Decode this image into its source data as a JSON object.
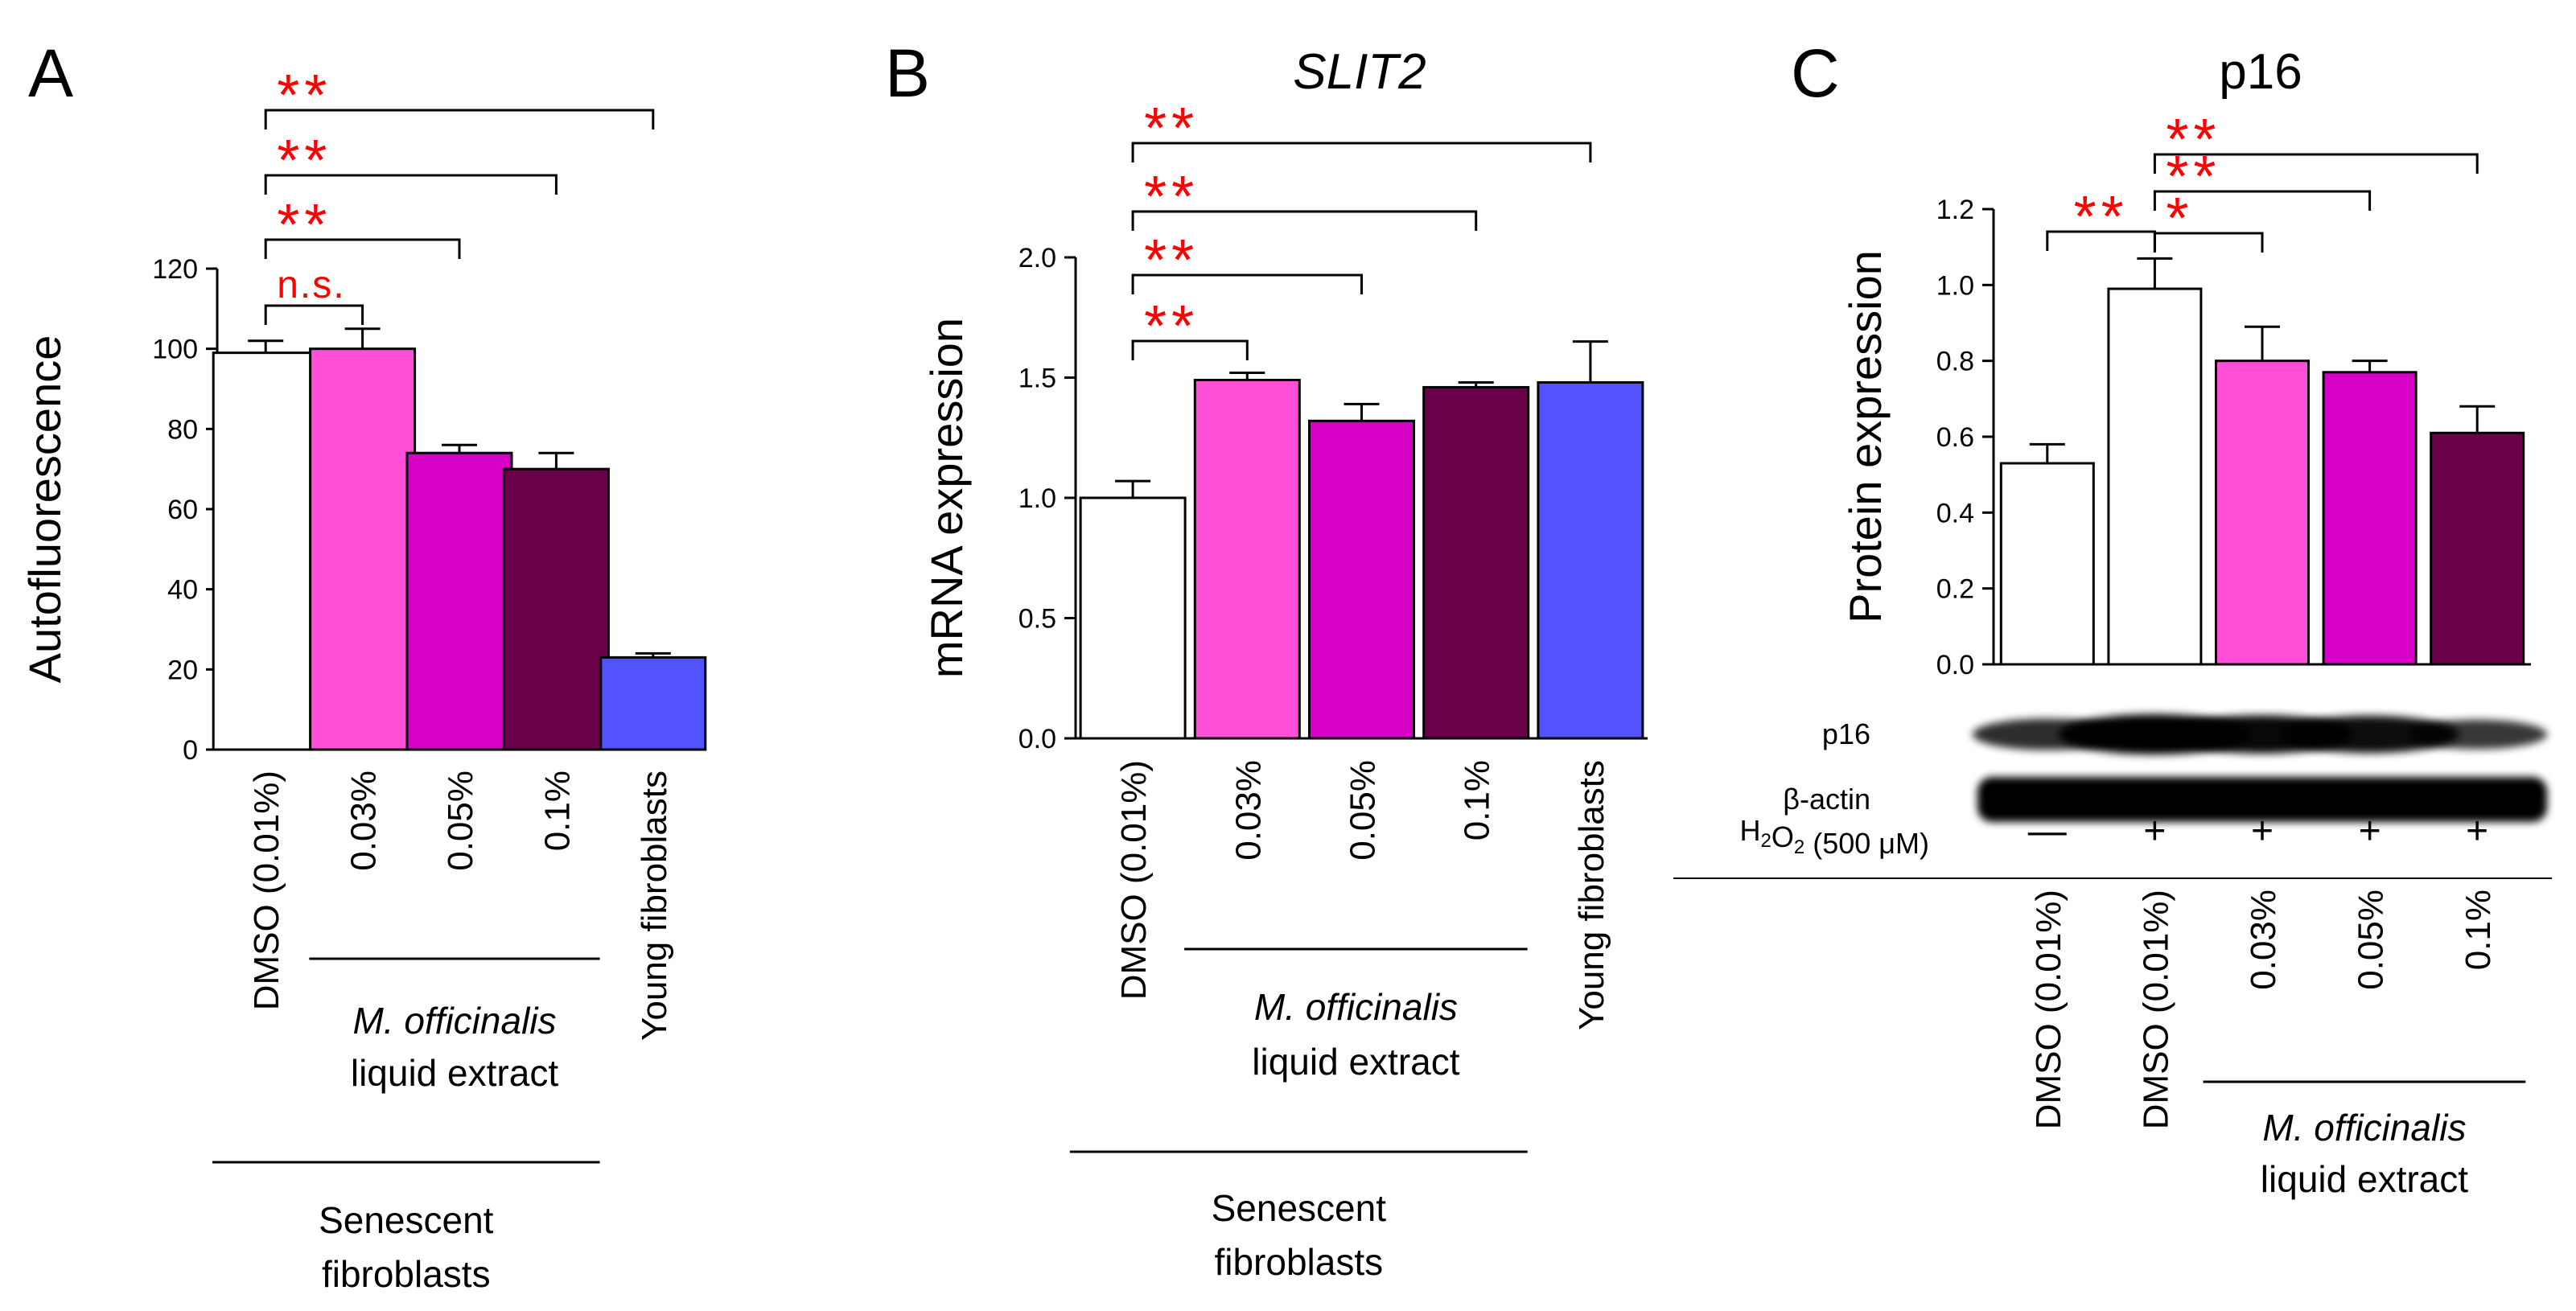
{
  "chart_data": [
    {
      "panel_label": "A",
      "type": "bar",
      "title": "",
      "ylabel": "Autofluorescence",
      "ylim": [
        0,
        120
      ],
      "ytick_step": 20,
      "ytick_decimals": 0,
      "categories": [
        "DMSO (0.01%)",
        "0.03%",
        "0.05%",
        "0.1%",
        "Young fibroblasts"
      ],
      "values": [
        99,
        100,
        74,
        70,
        23
      ],
      "errors": [
        3,
        5,
        2,
        4,
        1
      ],
      "bar_colors": [
        "#ffffff",
        "#ff4fd8",
        "#d600c6",
        "#6a004a",
        "#5252ff"
      ],
      "significance": [
        {
          "from": 0,
          "to": 1,
          "label": "n.s."
        },
        {
          "from": 0,
          "to": 2,
          "label": "**"
        },
        {
          "from": 0,
          "to": 3,
          "label": "**"
        },
        {
          "from": 0,
          "to": 4,
          "label": "**"
        }
      ],
      "groups": [
        {
          "from": 1,
          "to": 3,
          "line1_italic": "M. officinalis",
          "line2": "liquid extract"
        },
        {
          "from": 0,
          "to": 3,
          "line1": "Senescent",
          "line2": "fibroblasts"
        }
      ]
    },
    {
      "panel_label": "B",
      "type": "bar",
      "title": "SLIT2",
      "ylabel": "mRNA expression",
      "ylim": [
        0,
        2.0
      ],
      "ytick_step": 0.5,
      "ytick_decimals": 1,
      "categories": [
        "DMSO (0.01%)",
        "0.03%",
        "0.05%",
        "0.1%",
        "Young fibroblasts"
      ],
      "values": [
        1.0,
        1.49,
        1.32,
        1.46,
        1.48
      ],
      "errors": [
        0.07,
        0.03,
        0.07,
        0.02,
        0.17
      ],
      "bar_colors": [
        "#ffffff",
        "#ff4fd8",
        "#d600c6",
        "#6a004a",
        "#5252ff"
      ],
      "significance": [
        {
          "from": 0,
          "to": 1,
          "label": "**"
        },
        {
          "from": 0,
          "to": 2,
          "label": "**"
        },
        {
          "from": 0,
          "to": 3,
          "label": "**"
        },
        {
          "from": 0,
          "to": 4,
          "label": "**"
        }
      ],
      "groups": [
        {
          "from": 1,
          "to": 3,
          "line1_italic": "M. officinalis",
          "line2": "liquid extract"
        },
        {
          "from": 0,
          "to": 3,
          "line1": "Senescent",
          "line2": "fibroblasts"
        }
      ]
    },
    {
      "panel_label": "C",
      "type": "bar",
      "title": "p16",
      "ylabel": "Protein expression",
      "ylim": [
        0,
        1.2
      ],
      "ytick_step": 0.2,
      "ytick_decimals": 1,
      "categories": [
        "DMSO (0.01%)",
        "DMSO (0.01%)",
        "0.03%",
        "0.05%",
        "0.1%"
      ],
      "values": [
        0.53,
        0.99,
        0.8,
        0.77,
        0.61
      ],
      "errors": [
        0.05,
        0.08,
        0.09,
        0.03,
        0.07
      ],
      "bar_colors": [
        "#ffffff",
        "#ffffff",
        "#ff4fd8",
        "#d600c6",
        "#6a004a"
      ],
      "significance": [
        {
          "from": 0,
          "to": 1,
          "label": "**"
        },
        {
          "from": 1,
          "to": 2,
          "label": "*"
        },
        {
          "from": 1,
          "to": 3,
          "label": "**"
        },
        {
          "from": 1,
          "to": 4,
          "label": "**"
        }
      ],
      "blot": {
        "rows": [
          "p16",
          "β-actin"
        ],
        "band_strength": [
          [
            0.55,
            1.0,
            0.9,
            0.85,
            0.45
          ],
          [
            1.0,
            1.0,
            1.0,
            1.0,
            1.0
          ]
        ]
      },
      "treatment": {
        "label_prefix": "H",
        "label_sub1": "2",
        "label_mid": "O",
        "label_sub2": "2",
        "label_suffix": " (500 μM)",
        "marks": [
          "—",
          "+",
          "+",
          "+",
          "+"
        ]
      },
      "groups": [
        {
          "from": 2,
          "to": 4,
          "line1_italic": "M. officinalis",
          "line2": "liquid extract"
        }
      ]
    }
  ],
  "colors": {
    "significance": "#ff0000",
    "axis": "#000000",
    "text": "#000000"
  }
}
